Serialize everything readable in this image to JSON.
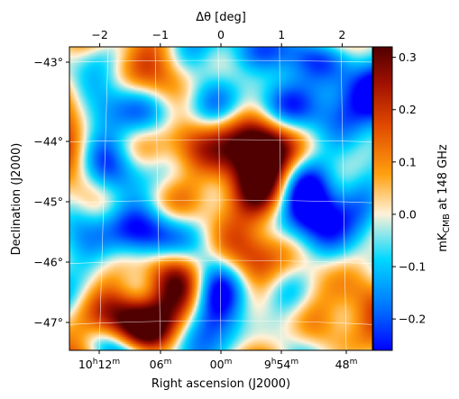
{
  "chart_data": {
    "type": "heatmap",
    "title": "",
    "x_top": {
      "label": "Δθ [deg]",
      "ticks": [
        -2,
        -1,
        0,
        1,
        2
      ],
      "tick_labels": [
        "−2",
        "−1",
        "0",
        "1",
        "2"
      ],
      "range": [
        -2.5,
        2.5
      ]
    },
    "x_bottom": {
      "label": "Right ascension (J2000)",
      "ticks": [
        {
          "h": "10",
          "m": "12"
        },
        {
          "h": "",
          "m": "06"
        },
        {
          "h": "",
          "m": "00"
        },
        {
          "h": "9",
          "m": "54"
        },
        {
          "h": "",
          "m": "48"
        }
      ]
    },
    "y_left": {
      "label": "Declination (J2000)",
      "ticks": [
        -43,
        -44,
        -45,
        -46,
        -47
      ],
      "tick_labels": [
        "−43°",
        "−44°",
        "−45°",
        "−46°",
        "−47°"
      ]
    },
    "colorbar": {
      "label_main": "mK",
      "label_sub": "CMB",
      "label_rest": " at 148 GHz",
      "range": [
        -0.26,
        0.32
      ],
      "ticks": [
        -0.2,
        -0.1,
        0.0,
        0.1,
        0.2,
        0.3
      ],
      "tick_labels": [
        "−0.2",
        "−0.1",
        "0.0",
        "0.1",
        "0.2",
        "0.3"
      ],
      "colormap": [
        "#0000ff",
        "#0072ff",
        "#00d8ff",
        "#fff2d8",
        "#ffa010",
        "#e04a00",
        "#a01000",
        "#500000"
      ]
    },
    "grid": true,
    "hot_spots_deg": [
      {
        "dx": -1.35,
        "dy": -2.05,
        "value": 0.28
      },
      {
        "dx": 0.75,
        "dy": 0.45,
        "value": 0.3
      },
      {
        "dx": -2.4,
        "dy": 0.35,
        "value": 0.22
      },
      {
        "dx": -1.3,
        "dy": 2.2,
        "value": 0.14
      },
      {
        "dx": 2.3,
        "dy": -1.3,
        "value": 0.14
      }
    ],
    "cold_spots_deg": [
      {
        "dx": 0.6,
        "dy": 2.3,
        "value": -0.22
      },
      {
        "dx": 2.3,
        "dy": 1.9,
        "value": -0.22
      },
      {
        "dx": -2.0,
        "dy": 1.1,
        "value": -0.18
      },
      {
        "dx": -0.8,
        "dy": -0.55,
        "value": -0.18
      },
      {
        "dx": 1.9,
        "dy": -0.15,
        "value": -0.18
      }
    ]
  }
}
